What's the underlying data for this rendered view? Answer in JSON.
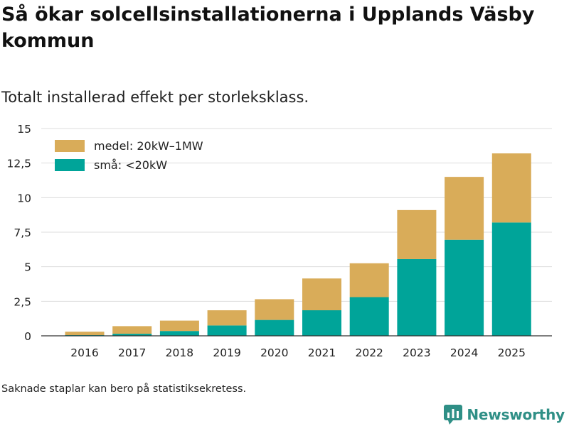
{
  "header": {
    "title": "Så ökar solcellsinstallationerna i Upplands Väsby kommun",
    "subtitle": "Totalt installerad effekt per storleksklass."
  },
  "footer": {
    "note": "Saknade staplar kan bero på statistiksekretess.",
    "brand": "Newsworthy"
  },
  "colors": {
    "small": "#00a499",
    "medium": "#d9ac59",
    "grid": "#dddddd",
    "text": "#222222",
    "brand": "#2f8f86"
  },
  "chart_data": {
    "type": "bar",
    "stacked": true,
    "title": "Så ökar solcellsinstallationerna i Upplands Väsby kommun",
    "subtitle": "Totalt installerad effekt per storleksklass.",
    "xlabel": "",
    "ylabel": "",
    "categories": [
      "2016",
      "2017",
      "2018",
      "2019",
      "2020",
      "2021",
      "2022",
      "2023",
      "2024",
      "2025"
    ],
    "series": [
      {
        "name": "små: <20kW",
        "color": "#00a499",
        "values": [
          0.05,
          0.15,
          0.35,
          0.75,
          1.15,
          1.85,
          2.8,
          5.55,
          6.95,
          8.2
        ]
      },
      {
        "name": "medel: 20kW–1MW",
        "color": "#d9ac59",
        "values": [
          0.25,
          0.55,
          0.75,
          1.1,
          1.5,
          2.3,
          2.45,
          3.55,
          4.55,
          5.0
        ]
      }
    ],
    "ylim": [
      0,
      15
    ],
    "yticks": [
      0,
      2.5,
      5,
      7.5,
      10,
      12.5,
      15
    ],
    "ytick_labels": [
      "0",
      "2,5",
      "5",
      "7,5",
      "10",
      "12,5",
      "15"
    ],
    "legend": [
      "medel: 20kW–1MW",
      "små: <20kW"
    ],
    "legend_position": "top-left",
    "grid": true
  }
}
